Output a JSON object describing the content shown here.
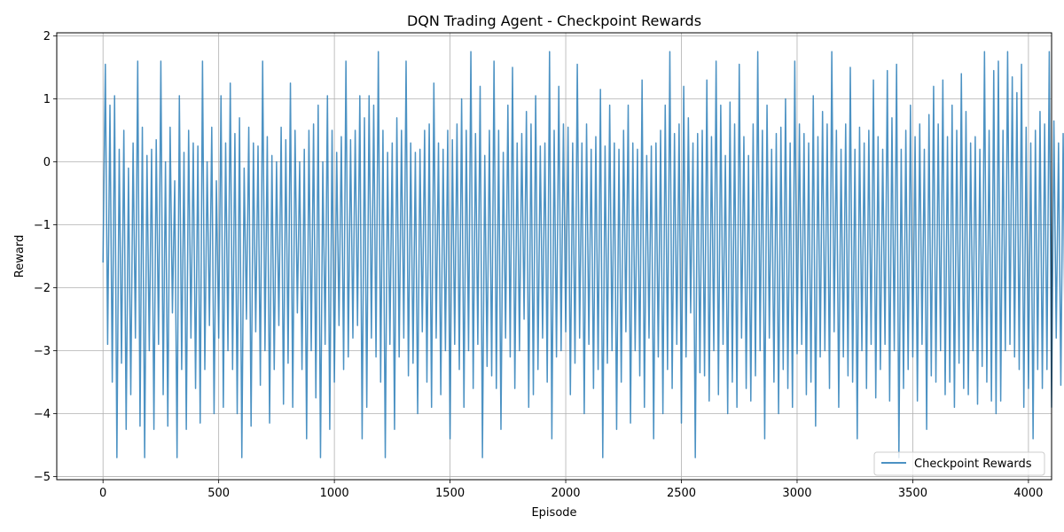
{
  "chart_data": {
    "type": "line",
    "title": "DQN Trading Agent - Checkpoint Rewards",
    "xlabel": "Episode",
    "ylabel": "Reward",
    "xlim": [
      -200,
      4100
    ],
    "ylim": [
      -5.05,
      2.05
    ],
    "xticks": [
      0,
      500,
      1000,
      1500,
      2000,
      2500,
      3000,
      3500,
      4000
    ],
    "yticks": [
      2,
      1,
      0,
      -1,
      -2,
      -3,
      -4,
      -5
    ],
    "xtick_labels": [
      "0",
      "500",
      "1000",
      "1500",
      "2000",
      "2500",
      "3000",
      "3500",
      "4000"
    ],
    "ytick_labels": [
      "2",
      "1",
      "0",
      "−1",
      "−2",
      "−3",
      "−4",
      "−5"
    ],
    "grid": true,
    "legend_position": "bottom-right",
    "series": [
      {
        "name": "Checkpoint Rewards",
        "color": "#1f77b4",
        "x_start": 0,
        "x_step": 10,
        "values": [
          -1.6,
          1.55,
          -2.9,
          0.9,
          -3.5,
          1.05,
          -4.7,
          0.2,
          -3.2,
          0.5,
          -4.25,
          -0.1,
          -3.7,
          0.3,
          -2.8,
          1.6,
          -4.2,
          0.55,
          -4.7,
          0.1,
          -3.0,
          0.2,
          -4.25,
          0.35,
          -2.9,
          1.6,
          -3.7,
          0.0,
          -4.2,
          0.55,
          -2.4,
          -0.3,
          -4.7,
          1.05,
          -3.3,
          0.15,
          -4.25,
          0.5,
          -2.8,
          0.3,
          -3.6,
          0.25,
          -4.15,
          1.6,
          -3.3,
          0.0,
          -2.6,
          0.55,
          -4.0,
          -0.3,
          -2.8,
          1.05,
          -3.9,
          0.3,
          -3.0,
          1.25,
          -3.3,
          0.45,
          -4.0,
          0.7,
          -4.7,
          -0.1,
          -2.5,
          0.55,
          -4.2,
          0.3,
          -2.7,
          0.25,
          -3.55,
          1.6,
          -3.0,
          0.4,
          -4.15,
          0.1,
          -3.3,
          0.0,
          -2.6,
          0.55,
          -3.85,
          0.35,
          -3.2,
          1.25,
          -3.9,
          0.5,
          -2.4,
          0.0,
          -3.3,
          0.2,
          -4.4,
          0.5,
          -3.0,
          0.6,
          -3.75,
          0.9,
          -4.7,
          0.0,
          -2.9,
          1.05,
          -4.25,
          0.5,
          -3.5,
          0.15,
          -2.6,
          0.4,
          -3.3,
          1.6,
          -3.1,
          0.35,
          -2.8,
          0.5,
          -2.6,
          1.05,
          -4.4,
          0.7,
          -3.9,
          1.05,
          -2.8,
          0.9,
          -3.1,
          1.75,
          -3.5,
          0.5,
          -4.7,
          0.15,
          -2.9,
          0.3,
          -4.25,
          0.7,
          -3.1,
          0.5,
          -2.8,
          1.6,
          -3.4,
          0.3,
          -3.2,
          0.15,
          -4.0,
          0.2,
          -2.7,
          0.5,
          -3.5,
          0.6,
          -3.9,
          1.25,
          -2.8,
          0.3,
          -3.7,
          0.2,
          -3.0,
          0.5,
          -4.4,
          0.35,
          -2.9,
          0.6,
          -3.3,
          1.0,
          -3.9,
          0.5,
          -3.0,
          1.75,
          -3.6,
          0.45,
          -2.9,
          1.2,
          -4.7,
          0.1,
          -3.25,
          0.5,
          -3.4,
          1.6,
          -3.6,
          0.5,
          -4.25,
          0.15,
          -2.8,
          0.9,
          -3.1,
          1.5,
          -3.6,
          0.3,
          -3.0,
          0.45,
          -2.5,
          0.8,
          -3.9,
          0.6,
          -3.7,
          1.05,
          -3.3,
          0.25,
          -2.8,
          0.3,
          -3.5,
          1.75,
          -4.4,
          0.5,
          -3.1,
          1.2,
          -3.0,
          0.6,
          -2.7,
          0.55,
          -3.7,
          0.3,
          -3.2,
          1.55,
          -2.8,
          0.3,
          -4.0,
          0.6,
          -2.9,
          0.2,
          -3.6,
          0.4,
          -3.3,
          1.15,
          -4.7,
          0.25,
          -3.2,
          0.9,
          -3.0,
          0.3,
          -4.25,
          0.2,
          -3.5,
          0.5,
          -2.7,
          0.9,
          -4.15,
          0.3,
          -3.0,
          0.2,
          -3.4,
          1.3,
          -3.9,
          0.1,
          -2.8,
          0.25,
          -4.4,
          0.3,
          -3.1,
          0.5,
          -4.0,
          0.9,
          -3.3,
          1.75,
          -3.6,
          0.45,
          -2.9,
          0.6,
          -4.15,
          1.2,
          -3.1,
          0.7,
          -2.4,
          0.3,
          -4.7,
          0.45,
          -3.35,
          0.5,
          -3.4,
          1.3,
          -3.8,
          0.4,
          -3.0,
          1.6,
          -3.7,
          0.9,
          -2.9,
          0.1,
          -4.0,
          0.95,
          -3.5,
          0.6,
          -3.9,
          1.55,
          -2.8,
          0.4,
          -3.6,
          0.1,
          -3.8,
          0.6,
          -3.4,
          1.75,
          -3.0,
          0.5,
          -4.4,
          0.9,
          -2.8,
          0.2,
          -3.5,
          0.45,
          -4.0,
          0.55,
          -3.3,
          1.0,
          -3.6,
          0.3,
          -3.9,
          1.6,
          -3.05,
          0.6,
          -2.9,
          0.45,
          -3.7,
          0.3,
          -3.5,
          1.05,
          -4.2,
          0.4,
          -3.1,
          0.8,
          -3.0,
          0.6,
          -3.6,
          1.75,
          -2.7,
          0.5,
          -3.9,
          0.2,
          -3.1,
          0.6,
          -3.4,
          1.5,
          -3.5,
          0.2,
          -4.4,
          0.55,
          -3.0,
          0.3,
          -3.6,
          0.5,
          -2.9,
          1.3,
          -3.75,
          0.4,
          -3.3,
          0.2,
          -2.9,
          1.45,
          -3.8,
          0.7,
          -3.0,
          1.55,
          -4.7,
          0.2,
          -3.6,
          0.5,
          -3.3,
          0.9,
          -3.1,
          0.4,
          -3.8,
          0.6,
          -2.9,
          0.2,
          -4.25,
          0.75,
          -3.4,
          1.2,
          -3.5,
          0.6,
          -3.0,
          1.3,
          -3.7,
          0.4,
          -3.5,
          0.9,
          -3.9,
          0.5,
          -3.2,
          1.4,
          -3.6,
          0.8,
          -3.7,
          0.3,
          -3.0,
          0.4,
          -3.85,
          0.2,
          -3.25,
          1.75,
          -3.5,
          0.5,
          -3.8,
          1.45,
          -4.0,
          1.6,
          -3.8,
          0.5,
          -3.0,
          1.75,
          -2.9,
          1.35,
          -3.1,
          1.1,
          -3.3,
          1.55,
          -3.9,
          0.55,
          -3.6,
          0.3,
          -4.4,
          0.5,
          -3.3,
          0.8,
          -3.6,
          0.6,
          -3.3,
          1.75,
          -3.9,
          0.65,
          -2.8,
          0.3,
          -3.55,
          0.45,
          -3.7,
          1.6,
          -3.8,
          0.55,
          -3.3,
          1.0,
          -3.9,
          0.7,
          -3.6,
          1.05,
          -3.2,
          0.4,
          -3.3,
          0.2,
          -3.1,
          0.8,
          -3.4,
          0.3,
          -4.7,
          0.5,
          -3.2,
          1.6,
          -3.0,
          0.6,
          -2.9,
          0.35,
          -4.1,
          0.9,
          -3.3,
          1.45,
          -3.6,
          0.5,
          -2.8,
          1.05,
          -3.9,
          0.3,
          -4.0,
          1.7,
          -3.3,
          0.6,
          -2.8,
          0.4,
          -3.8,
          0.55,
          -3.1,
          0.2,
          -4.25,
          1.25,
          -3.5,
          0.65,
          -2.9,
          1.55,
          -3.3,
          0.9,
          -2.8,
          0.45,
          -4.4,
          0.6,
          -3.2,
          1.75,
          -3.6,
          1.3,
          -2.5,
          1.0,
          -3.3,
          0.6,
          -3.9,
          1.7,
          -3.0,
          0.4,
          -4.25,
          0.5,
          -3.4,
          0.25,
          -4.0,
          0.2,
          -3.3,
          1.3,
          -3.6,
          0.55,
          -2.8,
          0.65,
          -4.0,
          0.4,
          -3.25,
          1.05,
          -3.55,
          1.6,
          -2.8,
          0.5,
          -3.2,
          0.55,
          -3.9,
          0.9,
          -3.3,
          1.1,
          -4.4,
          0.6,
          -3.0,
          0.5,
          -3.2,
          1.45,
          -3.5,
          0.4,
          -4.1,
          0.3,
          -3.3,
          0.6,
          -2.8,
          0.5,
          -3.6,
          1.3,
          -3.0,
          0.35,
          -4.15,
          0.9,
          -3.7,
          0.2,
          -3.1,
          0.6,
          -3.4,
          0.4,
          -4.7,
          0.3,
          -3.1,
          0.45,
          -3.3,
          1.1,
          -3.9,
          1.15,
          -4.25,
          0.5,
          -3.5,
          1.4,
          -3.3,
          0.2,
          -3.3,
          0.5,
          -3.0,
          0.4,
          -3.5,
          0.3,
          -4.0,
          0.45,
          -3.7,
          1.6,
          -3.3,
          0.8,
          -3.0,
          0.5,
          -2.7,
          0.25,
          -3.6,
          0.2,
          -3.3,
          0.3,
          -3.9,
          0.5,
          -3.4,
          1.75,
          -3.8,
          0.5,
          -3.3,
          1.0,
          -3.8,
          0.1,
          -2.9,
          1.55,
          -3.4,
          0.8,
          -3.0,
          0.5,
          -3.6,
          1.35,
          -3.9,
          0.1,
          -3.1,
          0.6,
          -3.3,
          0.45,
          -3.9,
          0.1,
          -3.5,
          1.05,
          -3.3,
          0.5,
          -3.7,
          1.75,
          -3.3,
          1.35,
          -3.1,
          0.9,
          -3.2,
          0.4,
          -3.6,
          0.5,
          -3.0,
          0.45,
          -3.2,
          0.5,
          -3.6,
          -0.4,
          -3.35,
          0.05,
          -4.55
        ]
      }
    ]
  }
}
